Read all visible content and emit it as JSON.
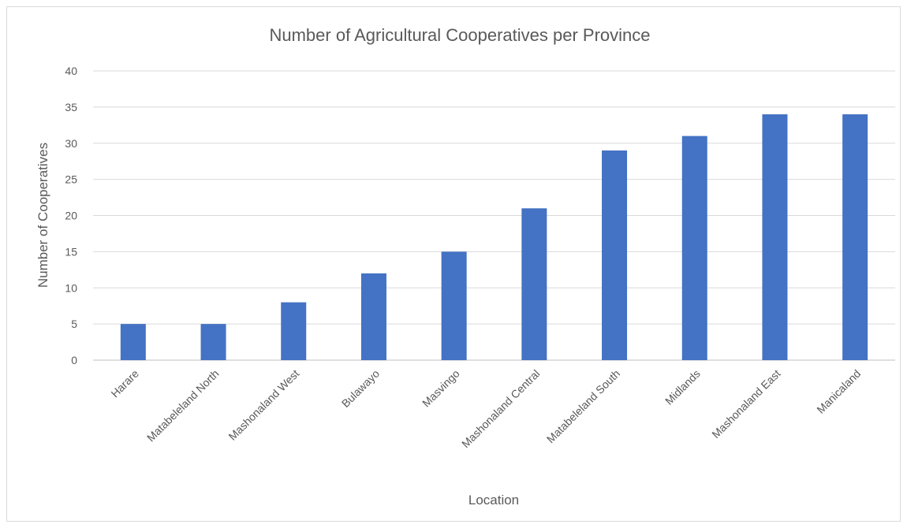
{
  "chart_data": {
    "type": "bar",
    "title": "Number of Agricultural Cooperatives per Province",
    "xlabel": "Location",
    "ylabel": "Number of Cooperatives",
    "categories": [
      "Harare",
      "Matabeleland North",
      "Mashonaland West",
      "Bulawayo",
      "Masvingo",
      "Mashonaland Central",
      "Matabeleland South",
      "Midlands",
      "Mashonaland East",
      "Manicaland"
    ],
    "values": [
      5,
      5,
      8,
      12,
      15,
      21,
      29,
      31,
      34,
      34
    ],
    "ylim": [
      0,
      40
    ],
    "yticks": [
      0,
      5,
      10,
      15,
      20,
      25,
      30,
      35,
      40
    ],
    "grid": true,
    "legend": "none",
    "bar_color": "#4472C4"
  }
}
